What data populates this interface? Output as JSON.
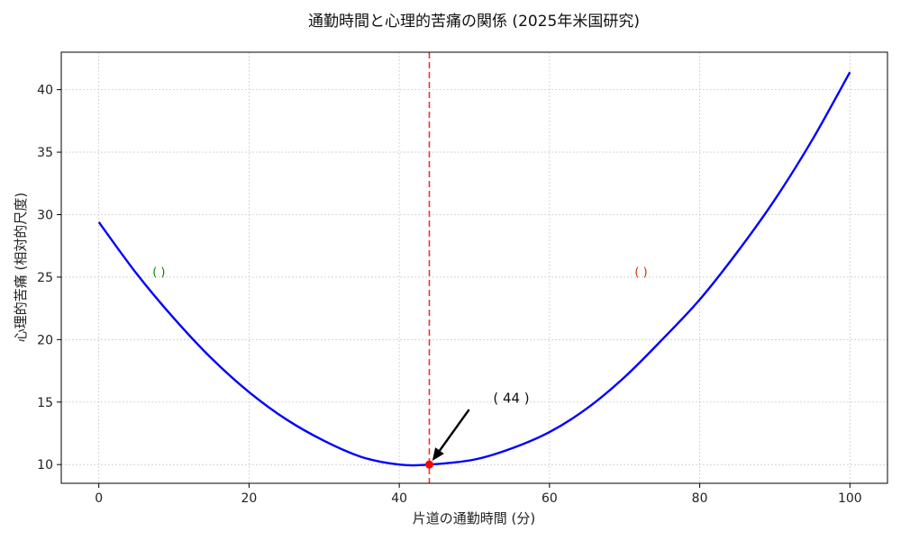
{
  "chart_data": {
    "type": "line",
    "title": "通勤時間と心理的苦痛の関係 (2025年米国研究)",
    "xlabel": "片道の通勤時間 (分)",
    "ylabel": "心理的苦痛 (相対的尺度)",
    "xlim": [
      -5,
      105
    ],
    "ylim": [
      8.5,
      43.0
    ],
    "xticks": [
      0,
      20,
      40,
      60,
      80,
      100
    ],
    "yticks": [
      10,
      15,
      20,
      25,
      30,
      35,
      40
    ],
    "grid": true,
    "series": [
      {
        "color": "#0000ff",
        "x": [
          0,
          5,
          10,
          15,
          20,
          25,
          30,
          35,
          40,
          44,
          50,
          55,
          60,
          65,
          70,
          75,
          80,
          85,
          90,
          95,
          100
        ],
        "y": [
          29.4,
          25.3,
          21.7,
          18.5,
          15.8,
          13.6,
          11.9,
          10.6,
          10.0,
          10.0,
          10.4,
          11.3,
          12.6,
          14.5,
          17.0,
          20.0,
          23.2,
          27.0,
          31.2,
          36.0,
          41.4
        ]
      }
    ],
    "optimal": {
      "x": 44,
      "y": 10,
      "line_color": "#ee3333",
      "marker_color": "#ff0000"
    },
    "annotations": [
      {
        "text": "( 44 )",
        "x": 52.5,
        "y": 15.3,
        "arrow_from": [
          49.3,
          14.4
        ],
        "arrow_to": [
          44.4,
          10.3
        ]
      }
    ],
    "region_labels": [
      {
        "text": "(        )",
        "x": 8,
        "y": 25.4,
        "color": "#008800"
      },
      {
        "text": "(     )",
        "x": 72.2,
        "y": 25.4,
        "color": "#cc3300"
      }
    ]
  }
}
